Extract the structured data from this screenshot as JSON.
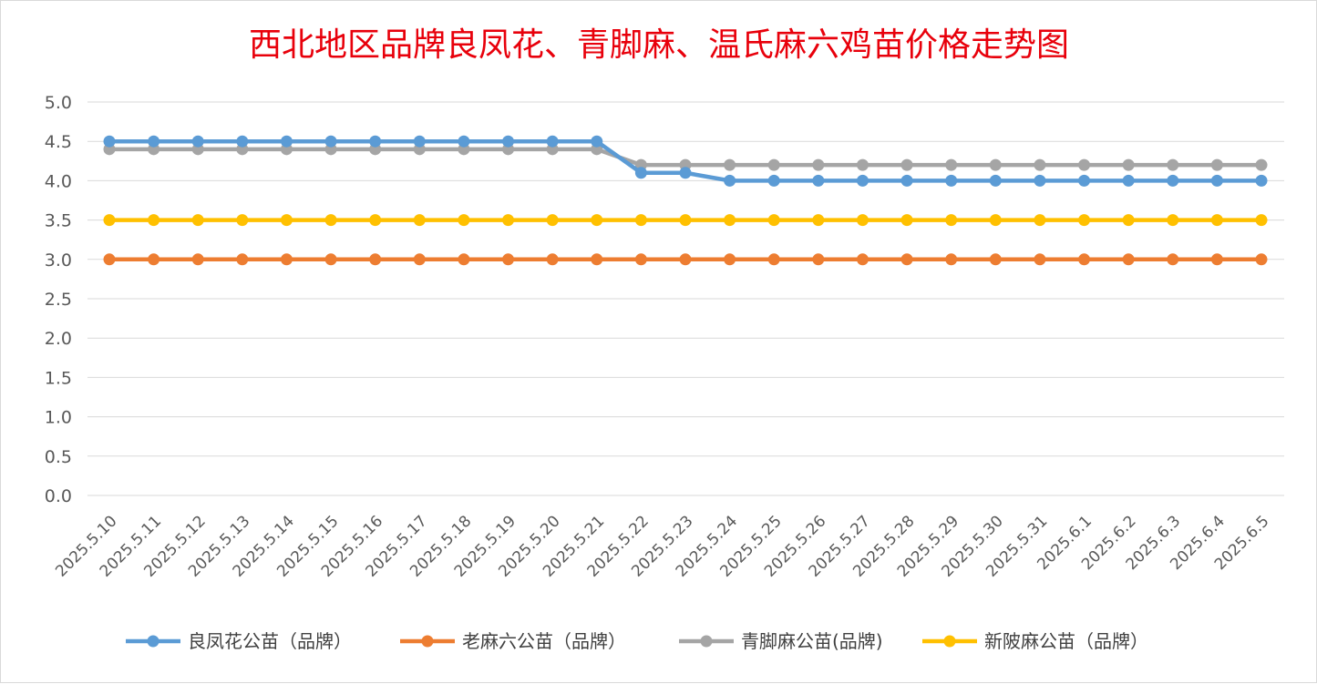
{
  "chart_data": {
    "type": "line",
    "title": "西北地区品牌良凤花、青脚麻、温氏麻六鸡苗价格走势图",
    "xlabel": "",
    "ylabel": "",
    "ylim": [
      0,
      5
    ],
    "yticks": [
      "0.0",
      "0.5",
      "1.0",
      "1.5",
      "2.0",
      "2.5",
      "3.0",
      "3.5",
      "4.0",
      "4.5",
      "5.0"
    ],
    "grid": true,
    "legend_position": "bottom",
    "categories": [
      "2025.5.10",
      "2025.5.11",
      "2025.5.12",
      "2025.5.13",
      "2025.5.14",
      "2025.5.15",
      "2025.5.16",
      "2025.5.17",
      "2025.5.18",
      "2025.5.19",
      "2025.5.20",
      "2025.5.21",
      "2025.5.22",
      "2025.5.23",
      "2025.5.24",
      "2025.5.25",
      "2025.5.26",
      "2025.5.27",
      "2025.5.28",
      "2025.5.29",
      "2025.5.30",
      "2025.5.31",
      "2025.6.1",
      "2025.6.2",
      "2025.6.3",
      "2025.6.4",
      "2025.6.5"
    ],
    "series": [
      {
        "name": "良凤花公苗（品牌）",
        "color": "#5b9bd5",
        "values": [
          4.5,
          4.5,
          4.5,
          4.5,
          4.5,
          4.5,
          4.5,
          4.5,
          4.5,
          4.5,
          4.5,
          4.5,
          4.1,
          4.1,
          4.0,
          4.0,
          4.0,
          4.0,
          4.0,
          4.0,
          4.0,
          4.0,
          4.0,
          4.0,
          4.0,
          4.0,
          4.0
        ]
      },
      {
        "name": "老麻六公苗（品牌）",
        "color": "#ed7d31",
        "values": [
          3.0,
          3.0,
          3.0,
          3.0,
          3.0,
          3.0,
          3.0,
          3.0,
          3.0,
          3.0,
          3.0,
          3.0,
          3.0,
          3.0,
          3.0,
          3.0,
          3.0,
          3.0,
          3.0,
          3.0,
          3.0,
          3.0,
          3.0,
          3.0,
          3.0,
          3.0,
          3.0
        ]
      },
      {
        "name": "青脚麻公苗(品牌)",
        "color": "#a5a5a5",
        "values": [
          4.4,
          4.4,
          4.4,
          4.4,
          4.4,
          4.4,
          4.4,
          4.4,
          4.4,
          4.4,
          4.4,
          4.4,
          4.2,
          4.2,
          4.2,
          4.2,
          4.2,
          4.2,
          4.2,
          4.2,
          4.2,
          4.2,
          4.2,
          4.2,
          4.2,
          4.2,
          4.2
        ]
      },
      {
        "name": "新陂麻公苗（品牌）",
        "color": "#ffc000",
        "values": [
          3.5,
          3.5,
          3.5,
          3.5,
          3.5,
          3.5,
          3.5,
          3.5,
          3.5,
          3.5,
          3.5,
          3.5,
          3.5,
          3.5,
          3.5,
          3.5,
          3.5,
          3.5,
          3.5,
          3.5,
          3.5,
          3.5,
          3.5,
          3.5,
          3.5,
          3.5,
          3.5
        ]
      }
    ],
    "draw_order": [
      2,
      0,
      3,
      1
    ]
  }
}
